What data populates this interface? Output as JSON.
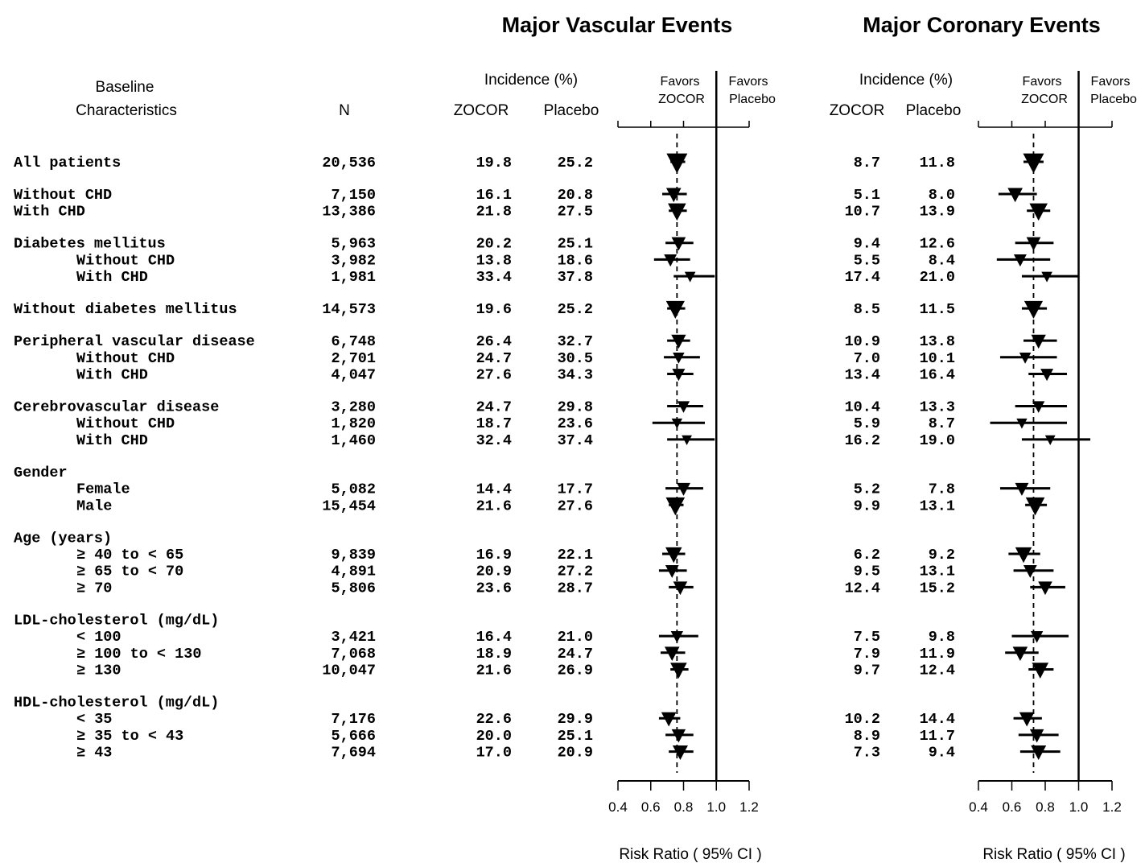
{
  "panels": [
    {
      "title": "Major Vascular Events"
    },
    {
      "title": "Major Coronary Events"
    }
  ],
  "headers": {
    "baseline_line1": "Baseline",
    "baseline_line2": "Characteristics",
    "n": "N",
    "incidence": "Incidence (%)",
    "zocor": "ZOCOR",
    "placebo": "Placebo",
    "favors_line1": "Favors",
    "favors_zocor": "ZOCOR",
    "favors_placebo": "Placebo"
  },
  "x_axis": {
    "label": "Risk Ratio ( 95% CI )",
    "ticks": [
      "0.4",
      "0.6",
      "0.8",
      "1.0",
      "1.2"
    ]
  },
  "chart_data": {
    "type": "forest",
    "x_scale": {
      "min": 0.4,
      "max": 1.2,
      "ticks": [
        0.4,
        0.6,
        0.8,
        1.0,
        1.2
      ],
      "reference_line": 1.0
    },
    "overall_effect_line": {
      "vascular": 0.76,
      "coronary": 0.73
    },
    "rows": [
      {
        "label": "All patients",
        "indent": 0,
        "group_start": true,
        "n": "20,536",
        "vascular": {
          "zocor": "19.8",
          "placebo": "25.2",
          "rr": 0.76,
          "lo": 0.72,
          "hi": 0.81
        },
        "coronary": {
          "zocor": "8.7",
          "placebo": "11.8",
          "rr": 0.73,
          "lo": 0.67,
          "hi": 0.79
        }
      },
      {
        "label": "Without CHD",
        "indent": 0,
        "group_start": true,
        "n": "7,150",
        "vascular": {
          "zocor": "16.1",
          "placebo": "20.8",
          "rr": 0.74,
          "lo": 0.67,
          "hi": 0.82
        },
        "coronary": {
          "zocor": "5.1",
          "placebo": "8.0",
          "rr": 0.62,
          "lo": 0.52,
          "hi": 0.75
        }
      },
      {
        "label": "With CHD",
        "indent": 0,
        "group_start": false,
        "n": "13,386",
        "vascular": {
          "zocor": "21.8",
          "placebo": "27.5",
          "rr": 0.76,
          "lo": 0.71,
          "hi": 0.82
        },
        "coronary": {
          "zocor": "10.7",
          "placebo": "13.9",
          "rr": 0.76,
          "lo": 0.69,
          "hi": 0.83
        }
      },
      {
        "label": "Diabetes mellitus",
        "indent": 0,
        "group_start": true,
        "n": "5,963",
        "vascular": {
          "zocor": "20.2",
          "placebo": "25.1",
          "rr": 0.77,
          "lo": 0.69,
          "hi": 0.86
        },
        "coronary": {
          "zocor": "9.4",
          "placebo": "12.6",
          "rr": 0.73,
          "lo": 0.62,
          "hi": 0.85
        }
      },
      {
        "label": "Without CHD",
        "indent": 1,
        "group_start": false,
        "n": "3,982",
        "vascular": {
          "zocor": "13.8",
          "placebo": "18.6",
          "rr": 0.72,
          "lo": 0.62,
          "hi": 0.84
        },
        "coronary": {
          "zocor": "5.5",
          "placebo": "8.4",
          "rr": 0.65,
          "lo": 0.51,
          "hi": 0.83
        }
      },
      {
        "label": "With CHD",
        "indent": 1,
        "group_start": false,
        "n": "1,981",
        "vascular": {
          "zocor": "33.4",
          "placebo": "37.8",
          "rr": 0.84,
          "lo": 0.74,
          "hi": 0.99
        },
        "coronary": {
          "zocor": "17.4",
          "placebo": "21.0",
          "rr": 0.81,
          "lo": 0.66,
          "hi": 1.0
        }
      },
      {
        "label": "Without diabetes mellitus",
        "indent": 0,
        "group_start": true,
        "n": "14,573",
        "vascular": {
          "zocor": "19.6",
          "placebo": "25.2",
          "rr": 0.75,
          "lo": 0.7,
          "hi": 0.81
        },
        "coronary": {
          "zocor": "8.5",
          "placebo": "11.5",
          "rr": 0.73,
          "lo": 0.66,
          "hi": 0.81
        }
      },
      {
        "label": "Peripheral vascular disease",
        "indent": 0,
        "group_start": true,
        "n": "6,748",
        "vascular": {
          "zocor": "26.4",
          "placebo": "32.7",
          "rr": 0.77,
          "lo": 0.7,
          "hi": 0.84
        },
        "coronary": {
          "zocor": "10.9",
          "placebo": "13.8",
          "rr": 0.76,
          "lo": 0.67,
          "hi": 0.87
        }
      },
      {
        "label": "Without CHD",
        "indent": 1,
        "group_start": false,
        "n": "2,701",
        "vascular": {
          "zocor": "24.7",
          "placebo": "30.5",
          "rr": 0.77,
          "lo": 0.68,
          "hi": 0.9
        },
        "coronary": {
          "zocor": "7.0",
          "placebo": "10.1",
          "rr": 0.68,
          "lo": 0.53,
          "hi": 0.87
        }
      },
      {
        "label": "With CHD",
        "indent": 1,
        "group_start": false,
        "n": "4,047",
        "vascular": {
          "zocor": "27.6",
          "placebo": "34.3",
          "rr": 0.77,
          "lo": 0.7,
          "hi": 0.86
        },
        "coronary": {
          "zocor": "13.4",
          "placebo": "16.4",
          "rr": 0.81,
          "lo": 0.7,
          "hi": 0.93
        }
      },
      {
        "label": "Cerebrovascular disease",
        "indent": 0,
        "group_start": true,
        "n": "3,280",
        "vascular": {
          "zocor": "24.7",
          "placebo": "29.8",
          "rr": 0.8,
          "lo": 0.7,
          "hi": 0.92
        },
        "coronary": {
          "zocor": "10.4",
          "placebo": "13.3",
          "rr": 0.76,
          "lo": 0.62,
          "hi": 0.93
        }
      },
      {
        "label": "Without CHD",
        "indent": 1,
        "group_start": false,
        "n": "1,820",
        "vascular": {
          "zocor": "18.7",
          "placebo": "23.6",
          "rr": 0.76,
          "lo": 0.61,
          "hi": 0.93
        },
        "coronary": {
          "zocor": "5.9",
          "placebo": "8.7",
          "rr": 0.66,
          "lo": 0.47,
          "hi": 0.93
        }
      },
      {
        "label": "With CHD",
        "indent": 1,
        "group_start": false,
        "n": "1,460",
        "vascular": {
          "zocor": "32.4",
          "placebo": "37.4",
          "rr": 0.82,
          "lo": 0.7,
          "hi": 0.99
        },
        "coronary": {
          "zocor": "16.2",
          "placebo": "19.0",
          "rr": 0.83,
          "lo": 0.66,
          "hi": 1.07
        }
      },
      {
        "label": "Gender",
        "indent": 0,
        "group_start": true,
        "header": true
      },
      {
        "label": "Female",
        "indent": 1,
        "group_start": false,
        "n": "5,082",
        "vascular": {
          "zocor": "14.4",
          "placebo": "17.7",
          "rr": 0.8,
          "lo": 0.69,
          "hi": 0.92
        },
        "coronary": {
          "zocor": "5.2",
          "placebo": "7.8",
          "rr": 0.66,
          "lo": 0.53,
          "hi": 0.83
        }
      },
      {
        "label": "Male",
        "indent": 1,
        "group_start": false,
        "n": "15,454",
        "vascular": {
          "zocor": "21.6",
          "placebo": "27.6",
          "rr": 0.75,
          "lo": 0.71,
          "hi": 0.8
        },
        "coronary": {
          "zocor": "9.9",
          "placebo": "13.1",
          "rr": 0.74,
          "lo": 0.68,
          "hi": 0.81
        }
      },
      {
        "label": "Age (years)",
        "indent": 0,
        "group_start": true,
        "header": true
      },
      {
        "label": "≥ 40 to < 65",
        "indent": 1,
        "group_start": false,
        "n": "9,839",
        "vascular": {
          "zocor": "16.9",
          "placebo": "22.1",
          "rr": 0.74,
          "lo": 0.67,
          "hi": 0.81
        },
        "coronary": {
          "zocor": "6.2",
          "placebo": "9.2",
          "rr": 0.67,
          "lo": 0.58,
          "hi": 0.77
        }
      },
      {
        "label": "≥ 65 to < 70",
        "indent": 1,
        "group_start": false,
        "n": "4,891",
        "vascular": {
          "zocor": "20.9",
          "placebo": "27.2",
          "rr": 0.73,
          "lo": 0.65,
          "hi": 0.82
        },
        "coronary": {
          "zocor": "9.5",
          "placebo": "13.1",
          "rr": 0.71,
          "lo": 0.61,
          "hi": 0.85
        }
      },
      {
        "label": "≥ 70",
        "indent": 1,
        "group_start": false,
        "n": "5,806",
        "vascular": {
          "zocor": "23.6",
          "placebo": "28.7",
          "rr": 0.78,
          "lo": 0.71,
          "hi": 0.86
        },
        "coronary": {
          "zocor": "12.4",
          "placebo": "15.2",
          "rr": 0.8,
          "lo": 0.71,
          "hi": 0.92
        }
      },
      {
        "label": "LDL-cholesterol (mg/dL)",
        "indent": 0,
        "group_start": true,
        "header": true
      },
      {
        "label": "< 100",
        "indent": 1,
        "group_start": false,
        "n": "3,421",
        "vascular": {
          "zocor": "16.4",
          "placebo": "21.0",
          "rr": 0.76,
          "lo": 0.65,
          "hi": 0.89
        },
        "coronary": {
          "zocor": "7.5",
          "placebo": "9.8",
          "rr": 0.75,
          "lo": 0.6,
          "hi": 0.94
        }
      },
      {
        "label": "≥ 100 to < 130",
        "indent": 1,
        "group_start": false,
        "n": "7,068",
        "vascular": {
          "zocor": "18.9",
          "placebo": "24.7",
          "rr": 0.73,
          "lo": 0.66,
          "hi": 0.81
        },
        "coronary": {
          "zocor": "7.9",
          "placebo": "11.9",
          "rr": 0.65,
          "lo": 0.56,
          "hi": 0.76
        }
      },
      {
        "label": "≥ 130",
        "indent": 1,
        "group_start": false,
        "n": "10,047",
        "vascular": {
          "zocor": "21.6",
          "placebo": "26.9",
          "rr": 0.77,
          "lo": 0.72,
          "hi": 0.83
        },
        "coronary": {
          "zocor": "9.7",
          "placebo": "12.4",
          "rr": 0.77,
          "lo": 0.7,
          "hi": 0.85
        }
      },
      {
        "label": "HDL-cholesterol (mg/dL)",
        "indent": 0,
        "group_start": true,
        "header": true
      },
      {
        "label": "< 35",
        "indent": 1,
        "group_start": false,
        "n": "7,176",
        "vascular": {
          "zocor": "22.6",
          "placebo": "29.9",
          "rr": 0.71,
          "lo": 0.65,
          "hi": 0.78
        },
        "coronary": {
          "zocor": "10.2",
          "placebo": "14.4",
          "rr": 0.69,
          "lo": 0.61,
          "hi": 0.78
        }
      },
      {
        "label": "≥ 35 to < 43",
        "indent": 1,
        "group_start": false,
        "n": "5,666",
        "vascular": {
          "zocor": "20.0",
          "placebo": "25.1",
          "rr": 0.77,
          "lo": 0.69,
          "hi": 0.86
        },
        "coronary": {
          "zocor": "8.9",
          "placebo": "11.7",
          "rr": 0.75,
          "lo": 0.64,
          "hi": 0.88
        }
      },
      {
        "label": "≥ 43",
        "indent": 1,
        "group_start": false,
        "n": "7,694",
        "vascular": {
          "zocor": "17.0",
          "placebo": "20.9",
          "rr": 0.78,
          "lo": 0.71,
          "hi": 0.86
        },
        "coronary": {
          "zocor": "7.3",
          "placebo": "9.4",
          "rr": 0.76,
          "lo": 0.65,
          "hi": 0.89
        }
      }
    ]
  }
}
